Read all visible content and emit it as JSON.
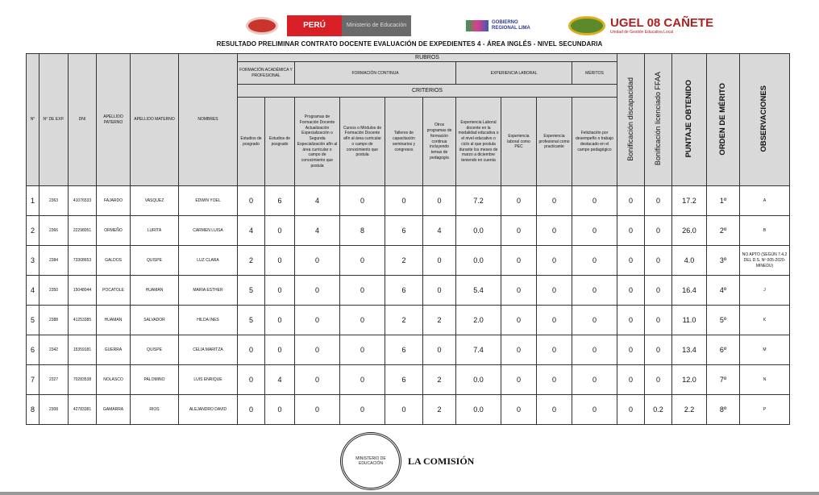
{
  "header": {
    "logos": {
      "peru": "PERÚ",
      "ministerio": "Ministerio de Educación",
      "gobierno": "GOBIERNO REGIONAL LIMA",
      "ugel": "UGEL 08 CAÑETE",
      "ugel_sub": "Unidad de Gestión Educativa Local"
    },
    "title": "RESULTADO PRELIMINAR CONTRATO DOCENTE EVALUACIÓN DE EXPEDIENTES 4 - ÁREA INGLÉS - NIVEL SECUNDARIA"
  },
  "table": {
    "headers": {
      "n": "N°",
      "exp": "N° DE EXP.",
      "dni": "DNI",
      "ap_paterno": "APELLIDO PATERNO",
      "ap_materno": "APELLIDO MATERNO",
      "nombres": "NOMBRES",
      "rubros": "RUBROS",
      "criterios": "CRITERIOS",
      "formacion_academica": "FORMACIÓN ACADÉMICA Y PROFESIONAL",
      "formacion_continua": "FORMACIÓN CONTINUA",
      "experiencia_laboral": "EXPERIENCIA LABORAL",
      "meritos": "MÉRITOS",
      "criteria": [
        "Estudios de posgrado",
        "Estudios de posgrado",
        "Programas de Formación Docente Actualización Especialización o Segunda Especialización afín al área curricular o campo de conocimiento que postula",
        "Cursos o Módulos de Formación Docente afín al área curricular o campo de conocimiento que postula",
        "Talleres de capacitación seminarios y congresos",
        "Otros programas de formación continua incluyendo temas de pedagogía",
        "Experiencia Laboral docente en la modalidad educativa o el nivel educativo o ciclo al que postula durante los meses de marzo a diciembre teniendo en cuenta",
        "Experiencia laboral como PEC",
        "Experiencia profesional como practicante",
        "Felicitación por desempeño o trabajo destacado en el campo pedagógico"
      ],
      "bon_discapacidad": "Bonificación discapacidad",
      "bon_ffaa": "Bonificación licenciado FFAA",
      "puntaje": "PUNTAJE OBTENIDO",
      "orden": "ORDEN DE MÉRITO",
      "observaciones": "OBSERVACIONES"
    },
    "rows": [
      {
        "n": "1",
        "exp": "2363",
        "dni": "41076533",
        "pat": "FAJARDO",
        "mat": "VASQUEZ",
        "nom": "EDWIN YOEL",
        "s": [
          "0",
          "6",
          "4",
          "0",
          "0",
          "0",
          "7.2",
          "0",
          "0",
          "0"
        ],
        "bd": "0",
        "bf": "0",
        "pt": "17.2",
        "om": "1º",
        "obs": "A"
      },
      {
        "n": "2",
        "exp": "2366",
        "dni": "22298051",
        "pat": "ORMEÑO",
        "mat": "LURITA",
        "nom": "CARMEN LUISA",
        "s": [
          "4",
          "0",
          "4",
          "8",
          "6",
          "4",
          "0.0",
          "0",
          "0",
          "0"
        ],
        "bd": "0",
        "bf": "0",
        "pt": "26.0",
        "om": "2º",
        "obs": "B"
      },
      {
        "n": "3",
        "exp": "2384",
        "dni": "73308653",
        "pat": "GALDOS",
        "mat": "QUISPE",
        "nom": "LUZ CLARA",
        "s": [
          "2",
          "0",
          "0",
          "0",
          "2",
          "0",
          "0.0",
          "0",
          "0",
          "0"
        ],
        "bd": "0",
        "bf": "0",
        "pt": "4.0",
        "om": "3º",
        "obs": "NO APTO (SEGÚN 7.4.2 DEL D.S. Nº 005-2020-MINEDU)"
      },
      {
        "n": "4",
        "exp": "2350",
        "dni": "15048044",
        "pat": "POCATOLE",
        "mat": "HUAMAN",
        "nom": "MARIA ESTHER",
        "s": [
          "5",
          "0",
          "0",
          "0",
          "6",
          "0",
          "5.4",
          "0",
          "0",
          "0"
        ],
        "bd": "0",
        "bf": "0",
        "pt": "16.4",
        "om": "4º",
        "obs": "J"
      },
      {
        "n": "5",
        "exp": "2388",
        "dni": "41253385",
        "pat": "HUAMAN",
        "mat": "SALVADOR",
        "nom": "HILDA INES",
        "s": [
          "5",
          "0",
          "0",
          "0",
          "2",
          "2",
          "2.0",
          "0",
          "0",
          "0"
        ],
        "bd": "0",
        "bf": "0",
        "pt": "11.0",
        "om": "5º",
        "obs": "K"
      },
      {
        "n": "6",
        "exp": "2342",
        "dni": "15359181",
        "pat": "GUERRA",
        "mat": "QUISPE",
        "nom": "CELIA MARITZA",
        "s": [
          "0",
          "0",
          "0",
          "0",
          "6",
          "0",
          "7.4",
          "0",
          "0",
          "0"
        ],
        "bd": "0",
        "bf": "0",
        "pt": "13.4",
        "om": "6º",
        "obs": "M"
      },
      {
        "n": "7",
        "exp": "2327",
        "dni": "70283538",
        "pat": "NOLASCO",
        "mat": "PALOMINO",
        "nom": "LUIS ENRIQUE",
        "s": [
          "0",
          "4",
          "0",
          "0",
          "6",
          "2",
          "0.0",
          "0",
          "0",
          "0"
        ],
        "bd": "0",
        "bf": "0",
        "pt": "12.0",
        "om": "7º",
        "obs": "N"
      },
      {
        "n": "8",
        "exp": "2308",
        "dni": "42783381",
        "pat": "GAMARRA",
        "mat": "RIOS",
        "nom": "ALEJANDRO DAVID",
        "s": [
          "0",
          "0",
          "0",
          "0",
          "0",
          "2",
          "0.0",
          "0",
          "0",
          "0"
        ],
        "bd": "0",
        "bf": "0.2",
        "pt": "2.2",
        "om": "8º",
        "obs": "P"
      }
    ]
  },
  "footer": {
    "seal_text": "MINISTERIO DE EDUCACIÓN",
    "signature": "LA COMISIÓN"
  }
}
